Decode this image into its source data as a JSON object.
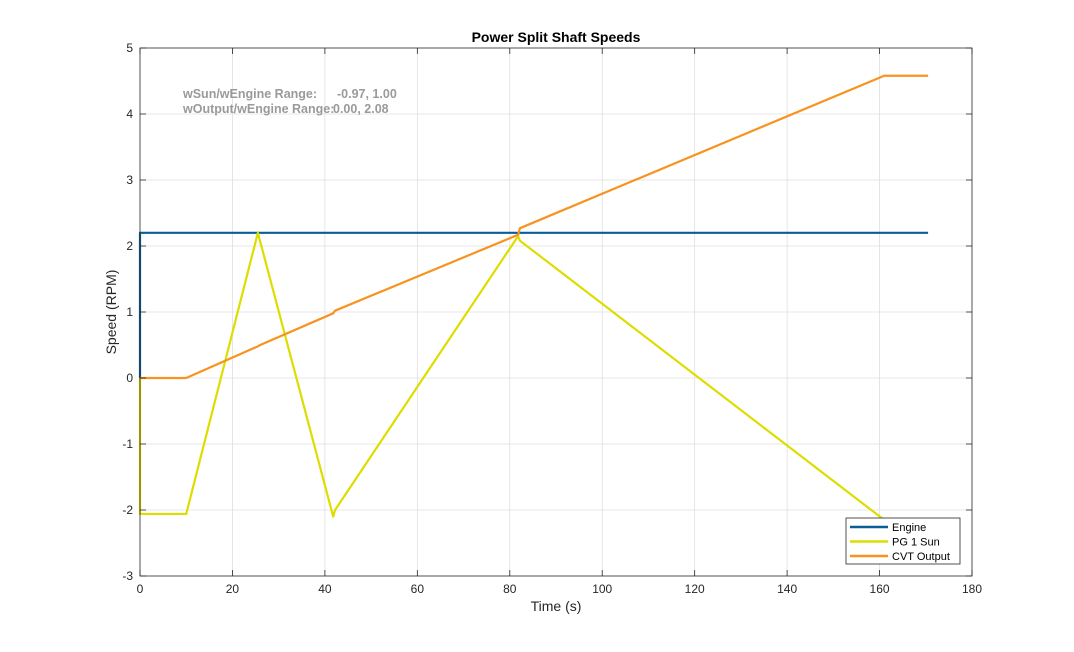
{
  "chart_data": {
    "type": "line",
    "title": "Power Split Shaft Speeds",
    "xlabel": "Time (s)",
    "ylabel": "Speed (RPM)",
    "xlim": [
      0,
      180
    ],
    "ylim": [
      -3,
      5
    ],
    "xticks": [
      0,
      20,
      40,
      60,
      80,
      100,
      120,
      140,
      160,
      180
    ],
    "yticks": [
      -3,
      -2,
      -1,
      0,
      1,
      2,
      3,
      4,
      5
    ],
    "grid": true,
    "legend_position": "bottom-right",
    "annotations": [
      {
        "label": "wSun/wEngine Range:",
        "value": "-0.97, 1.00"
      },
      {
        "label": "wOutput/wEngine Range:",
        "value": "0.00, 2.08"
      }
    ],
    "series": [
      {
        "name": "Engine",
        "color": "#0a5e96",
        "points": [
          [
            0,
            0
          ],
          [
            0,
            2.2
          ],
          [
            170.5,
            2.2
          ]
        ]
      },
      {
        "name": "PG 1 Sun",
        "color": "#dddd00",
        "points": [
          [
            0,
            0
          ],
          [
            0,
            -2.06
          ],
          [
            10,
            -2.06
          ],
          [
            25.5,
            2.2
          ],
          [
            41.8,
            -2.1
          ],
          [
            42.2,
            -2.0
          ],
          [
            81.8,
            2.15
          ],
          [
            82.2,
            2.08
          ],
          [
            161,
            -2.15
          ]
        ]
      },
      {
        "name": "CVT Output",
        "color": "#f7931e",
        "points": [
          [
            0,
            0
          ],
          [
            10,
            0
          ],
          [
            25.5,
            0.48
          ],
          [
            26,
            0.5
          ],
          [
            41.8,
            0.98
          ],
          [
            42.2,
            1.02
          ],
          [
            81.8,
            2.17
          ],
          [
            82.2,
            2.27
          ],
          [
            161,
            4.58
          ],
          [
            170.5,
            4.58
          ]
        ]
      }
    ]
  }
}
